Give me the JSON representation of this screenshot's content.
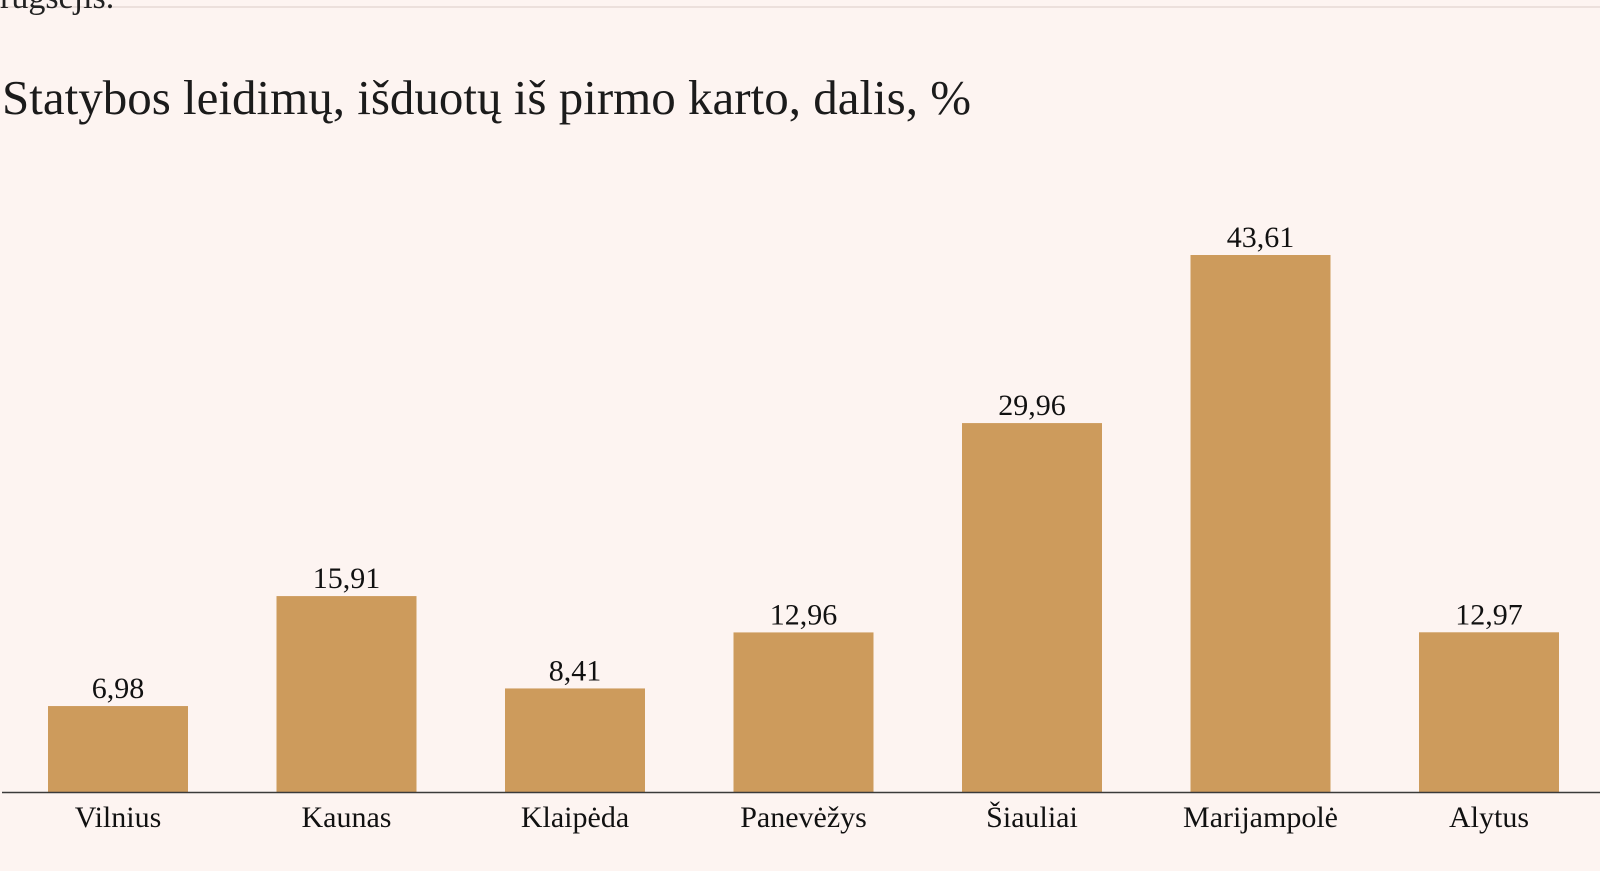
{
  "page": {
    "clipped_text": "rugsėjis."
  },
  "chart_data": {
    "type": "bar",
    "title": "Statybos leidimų, išduotų iš pirmo karto, dalis, %",
    "categories": [
      "Vilnius",
      "Kaunas",
      "Klaipėda",
      "Panevėžys",
      "Šiauliai",
      "Marijampolė",
      "Alytus"
    ],
    "values": [
      6.98,
      15.91,
      8.41,
      12.96,
      29.96,
      43.61,
      12.97
    ],
    "value_labels": [
      "6,98",
      "15,91",
      "8,41",
      "12,96",
      "29,96",
      "43,61",
      "12,97"
    ],
    "xlabel": "",
    "ylabel": "",
    "ylim": [
      0,
      43.61
    ],
    "grid": false,
    "legend": "none",
    "colors": {
      "bar": "#cd9b5c",
      "axis": "#3a3a3a",
      "background": "#fdf4f1"
    }
  }
}
